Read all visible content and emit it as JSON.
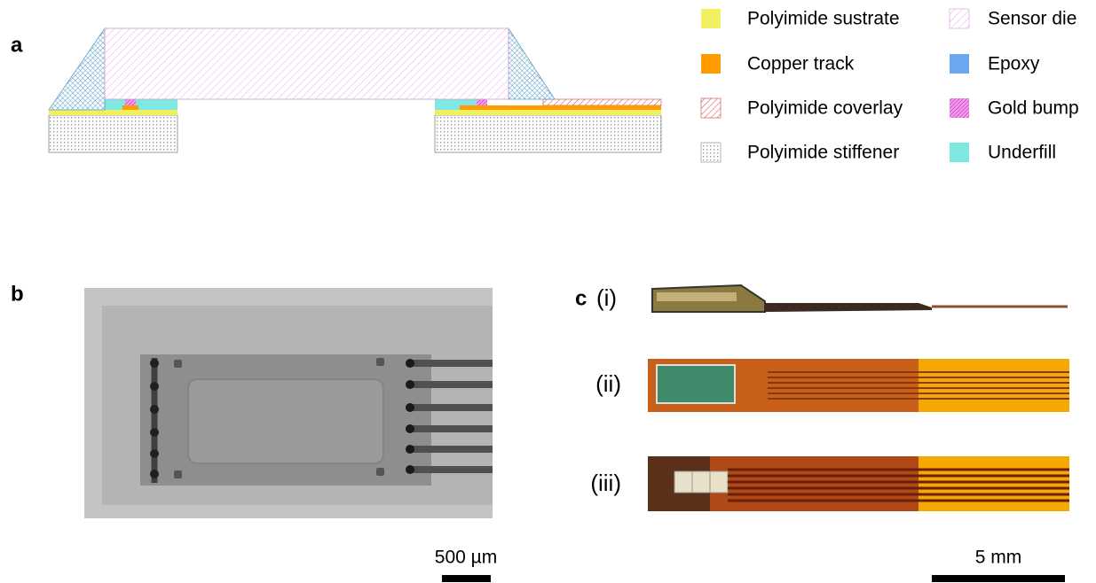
{
  "panel_a": {
    "label": "a",
    "legend": [
      "Polyimide sustrate",
      "Copper track",
      "Polyimide coverlay",
      "Polyimide stiffener",
      "Sensor die",
      "Epoxy",
      "Gold bump",
      "Underfill"
    ]
  },
  "panel_b": {
    "label": "b",
    "scale_bar": "500 µm"
  },
  "panel_c": {
    "label": "c",
    "views": [
      "(i)",
      "(ii)",
      "(iii)"
    ],
    "scale_bar": "5 mm"
  }
}
